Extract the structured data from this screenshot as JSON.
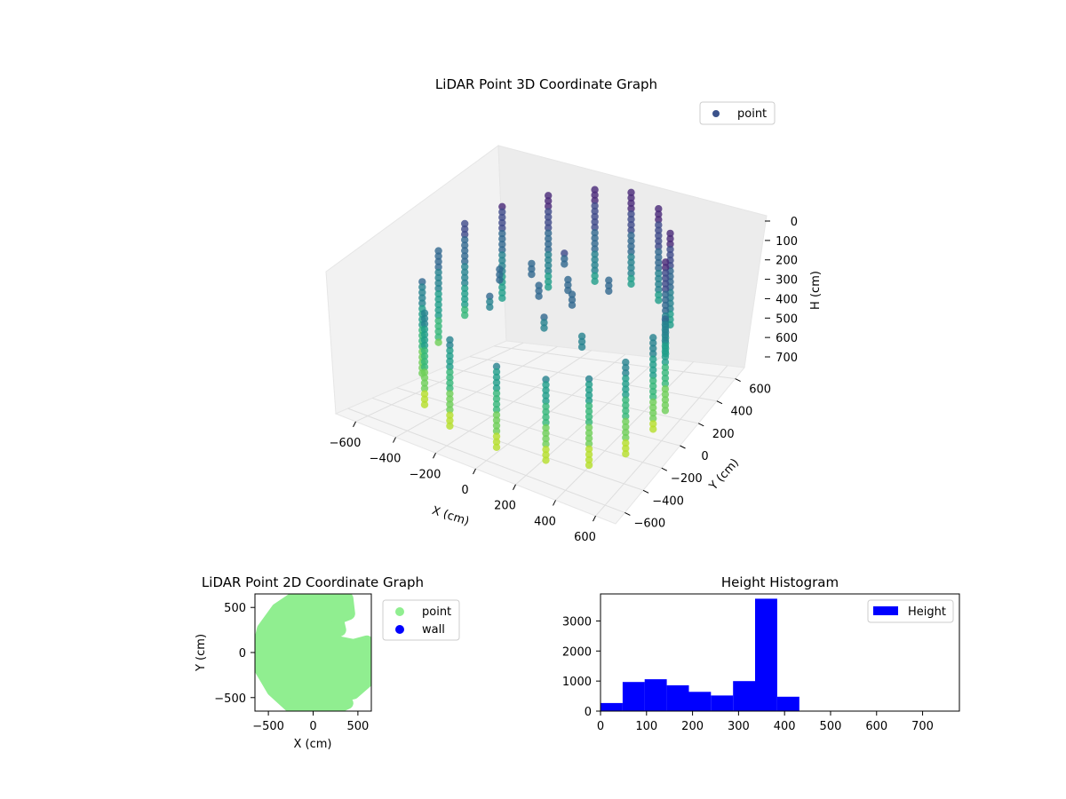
{
  "chart_data": [
    {
      "type": "scatter",
      "title": "LiDAR Point 3D Coordinate Graph",
      "projection": "3d",
      "xlabel": "X (cm)",
      "ylabel": "Y (cm)",
      "zlabel": "H (cm)",
      "xlim": [
        -700,
        700
      ],
      "ylim": [
        -700,
        700
      ],
      "zlim": [
        0,
        780
      ],
      "z_inverted": true,
      "xticks": [
        "−600",
        "−400",
        "−200",
        "0",
        "200",
        "400",
        "600"
      ],
      "yticks": [
        "−600",
        "−400",
        "−200",
        "0",
        "200",
        "400",
        "600"
      ],
      "zticks": [
        "0",
        "100",
        "200",
        "300",
        "400",
        "500",
        "600",
        "700"
      ],
      "colormap": "viridis",
      "legend": {
        "position": "upper-right",
        "entries": [
          {
            "label": "point",
            "color": "#3b528b"
          }
        ]
      },
      "grid": true,
      "series": [
        {
          "name": "point",
          "points": [
            [
              -470,
              330,
              120
            ],
            [
              -300,
              470,
              90
            ],
            [
              -90,
              560,
              70
            ],
            [
              120,
              560,
              60
            ],
            [
              330,
              470,
              70
            ],
            [
              480,
              320,
              90
            ],
            [
              560,
              120,
              110
            ],
            [
              -560,
              150,
              160
            ],
            [
              -580,
              -40,
              230
            ],
            [
              -540,
              -240,
              300
            ],
            [
              -430,
              -400,
              360
            ],
            [
              -230,
              -520,
              380
            ],
            [
              30,
              -560,
              400
            ],
            [
              260,
              -520,
              400
            ],
            [
              430,
              -420,
              390
            ],
            [
              540,
              -260,
              360
            ],
            [
              590,
              -70,
              330
            ],
            [
              600,
              40,
              300
            ],
            [
              -150,
              80,
              230
            ],
            [
              60,
              60,
              250
            ],
            [
              -40,
              -40,
              260
            ],
            [
              150,
              -60,
              250
            ],
            [
              -220,
              -180,
              300
            ],
            [
              260,
              100,
              230
            ],
            [
              -60,
              230,
              220
            ],
            [
              90,
              -220,
              300
            ],
            [
              -300,
              40,
              270
            ],
            [
              300,
              -240,
              320
            ]
          ]
        }
      ]
    },
    {
      "type": "scatter",
      "title": "LiDAR Point 2D Coordinate Graph",
      "xlabel": "X (cm)",
      "ylabel": "Y (cm)",
      "xlim": [
        -650,
        650
      ],
      "ylim": [
        -650,
        650
      ],
      "xticks": [
        "−500",
        "0",
        "500"
      ],
      "yticks": [
        "−500",
        "0",
        "500"
      ],
      "legend": {
        "position": "outside-right",
        "entries": [
          {
            "label": "point",
            "color": "#90ee90"
          },
          {
            "label": "wall",
            "color": "#0000ff"
          }
        ]
      },
      "series": [
        {
          "name": "point",
          "color": "#90ee90",
          "shape": [
            [
              -80,
              650
            ],
            [
              170,
              650
            ],
            [
              380,
              600
            ],
            [
              400,
              430
            ],
            [
              270,
              380
            ],
            [
              300,
              250
            ],
            [
              200,
              200
            ],
            [
              250,
              120
            ],
            [
              450,
              80
            ],
            [
              600,
              120
            ],
            [
              640,
              -120
            ],
            [
              600,
              -320
            ],
            [
              450,
              -450
            ],
            [
              320,
              -480
            ],
            [
              380,
              -560
            ],
            [
              200,
              -640
            ],
            [
              0,
              -650
            ],
            [
              -250,
              -600
            ],
            [
              -450,
              -420
            ],
            [
              -580,
              -200
            ],
            [
              -620,
              0
            ],
            [
              -560,
              260
            ],
            [
              -400,
              480
            ],
            [
              -220,
              600
            ]
          ]
        },
        {
          "name": "wall",
          "color": "#0000ff",
          "shape": []
        }
      ]
    },
    {
      "type": "bar",
      "subtype": "histogram",
      "title": "Height Histogram",
      "xlim": [
        0,
        780
      ],
      "ylim": [
        0,
        3900
      ],
      "xticks": [
        "0",
        "100",
        "200",
        "300",
        "400",
        "500",
        "600",
        "700"
      ],
      "yticks": [
        "0",
        "1000",
        "2000",
        "3000"
      ],
      "color": "#0000ff",
      "legend": {
        "position": "upper-right",
        "entries": [
          {
            "label": "Height",
            "color": "#0000ff"
          }
        ]
      },
      "bin_edges": [
        0,
        48,
        96,
        144,
        192,
        240,
        288,
        336,
        384,
        432,
        480,
        528,
        576,
        624,
        672,
        720,
        768,
        780
      ],
      "values": [
        270,
        970,
        1060,
        860,
        640,
        520,
        1000,
        3740,
        480,
        0,
        0,
        0,
        0,
        0,
        0,
        0,
        0
      ]
    }
  ]
}
